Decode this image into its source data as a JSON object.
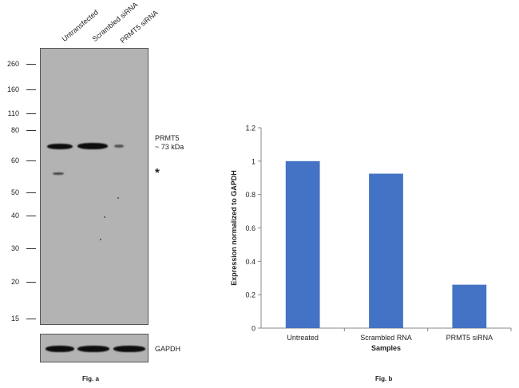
{
  "blot": {
    "lanes": [
      "Untransfected",
      "Scrambled siRNA",
      "PRMT5 siRNA"
    ],
    "markers": [
      "260",
      "160",
      "110",
      "80",
      "60",
      "50",
      "40",
      "30",
      "20",
      "15"
    ],
    "target_label": "PRMT5",
    "target_size": "~ 73 kDa",
    "nonspecific_marker": "*",
    "loading_control": "GAPDH",
    "caption": "Fig. a"
  },
  "chart_data": {
    "type": "bar",
    "title": "",
    "categories": [
      "Untreated",
      "Scrambled RNA",
      "PRMT5 siRNA"
    ],
    "values": [
      1.0,
      0.925,
      0.26
    ],
    "xlabel": "Samples",
    "ylabel": "Expression normalized to GAPDH",
    "ylim": [
      0,
      1.2
    ],
    "yticks": [
      "0",
      "0.2",
      "0.4",
      "0.6",
      "0.8",
      "1",
      "1.2"
    ],
    "bar_color": "#4472c4",
    "grid": false,
    "caption": "Fig. b"
  }
}
